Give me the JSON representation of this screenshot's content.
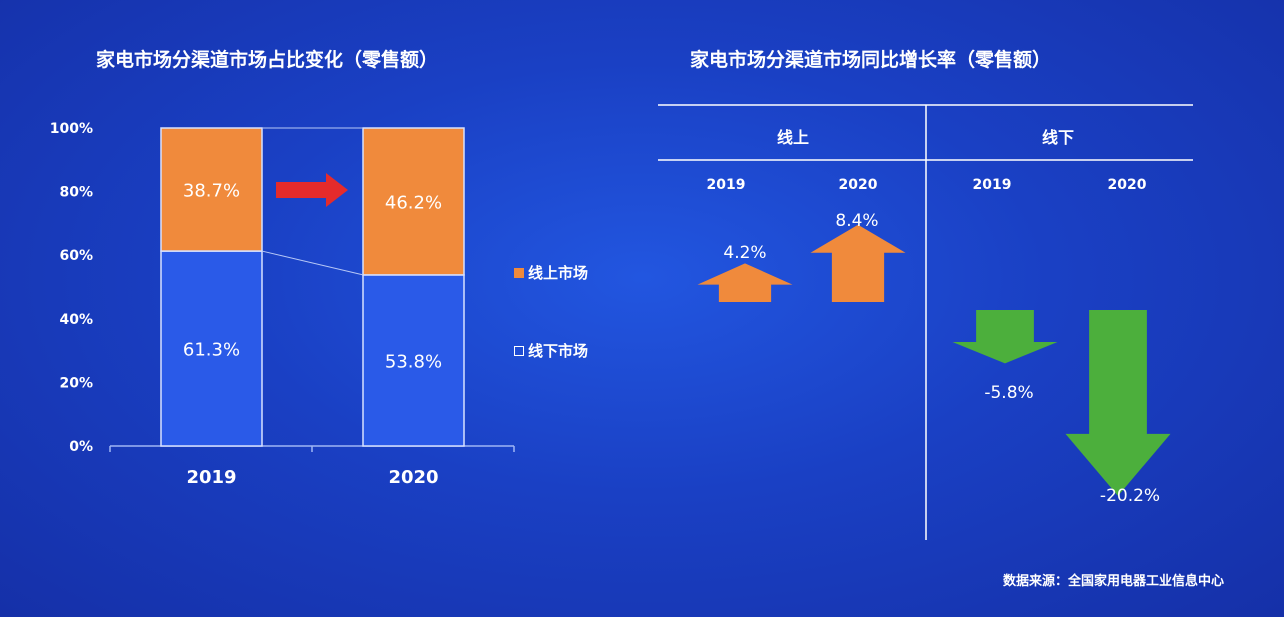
{
  "chart_data": [
    {
      "type": "bar",
      "title": "家电市场分渠道市场占比变化（零售额）",
      "categories": [
        "2019",
        "2020"
      ],
      "series": [
        {
          "name": "线下市场",
          "values": [
            61.3,
            53.8
          ],
          "labels": [
            "61.3%",
            "53.8%"
          ],
          "color": "#2a5ae8"
        },
        {
          "name": "线上市场",
          "values": [
            38.7,
            46.2
          ],
          "labels": [
            "38.7%",
            "46.2%"
          ],
          "color": "#f08a3c"
        }
      ],
      "ylim": [
        0,
        100
      ],
      "yticks": [
        "0%",
        "20%",
        "40%",
        "60%",
        "80%",
        "100%"
      ],
      "legend_position": "right"
    },
    {
      "type": "bar",
      "title": "家电市场分渠道市场同比增长率（零售额）",
      "groups": [
        {
          "name": "线上",
          "categories": [
            "2019",
            "2020"
          ],
          "values": [
            4.2,
            8.4
          ],
          "labels": [
            "4.2%",
            "8.4%"
          ],
          "color": "#f08a3c"
        },
        {
          "name": "线下",
          "categories": [
            "2019",
            "2020"
          ],
          "values": [
            -5.8,
            -20.2
          ],
          "labels": [
            "-5.8%",
            "-20.2%"
          ],
          "color": "#4caf3c"
        }
      ]
    }
  ],
  "source": "数据来源：全国家用电器工业信息中心"
}
